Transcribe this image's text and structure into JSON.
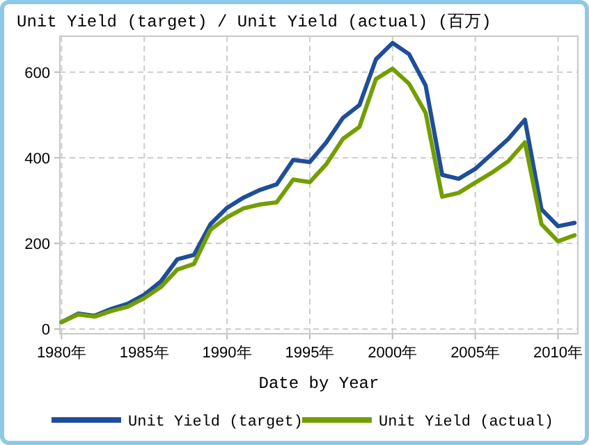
{
  "chart_data": {
    "type": "line",
    "title": "Unit Yield (target) / Unit Yield (actual) (百万)",
    "xlabel": "Date by Year",
    "x": [
      1980,
      1981,
      1982,
      1983,
      1984,
      1985,
      1986,
      1987,
      1988,
      1989,
      1990,
      1991,
      1992,
      1993,
      1994,
      1995,
      1996,
      1997,
      1998,
      1999,
      2000,
      2001,
      2002,
      2003,
      2004,
      2005,
      2006,
      2007,
      2008,
      2009,
      2010,
      2011
    ],
    "series": [
      {
        "name": "Unit Yield (target)",
        "color": "#1f4e99",
        "values": [
          16,
          36,
          31,
          47,
          59,
          80,
          111,
          163,
          173,
          245,
          283,
          307,
          325,
          338,
          395,
          390,
          436,
          493,
          523,
          630,
          668,
          642,
          569,
          360,
          351,
          374,
          409,
          444,
          489,
          280,
          240,
          248
        ]
      },
      {
        "name": "Unit Yield (actual)",
        "color": "#739e00",
        "values": [
          16,
          34,
          29,
          42,
          52,
          72,
          98,
          139,
          152,
          232,
          261,
          282,
          291,
          296,
          349,
          343,
          385,
          444,
          472,
          584,
          608,
          573,
          505,
          309,
          318,
          342,
          365,
          392,
          436,
          245,
          205,
          219
        ]
      }
    ],
    "xlim": [
      1979.9,
      2011.2
    ],
    "ylim": [
      -11,
      684
    ],
    "xticks": [
      {
        "value": 1980,
        "label": "1980年"
      },
      {
        "value": 1985,
        "label": "1985年"
      },
      {
        "value": 1990,
        "label": "1990年"
      },
      {
        "value": 1995,
        "label": "1995年"
      },
      {
        "value": 2000,
        "label": "2000年"
      },
      {
        "value": 2005,
        "label": "2005年"
      },
      {
        "value": 2010,
        "label": "2010年"
      }
    ],
    "yticks": [
      0,
      200,
      400,
      600
    ],
    "grid": true,
    "legend": "bottom",
    "marker": "none",
    "line_style": "solid"
  }
}
